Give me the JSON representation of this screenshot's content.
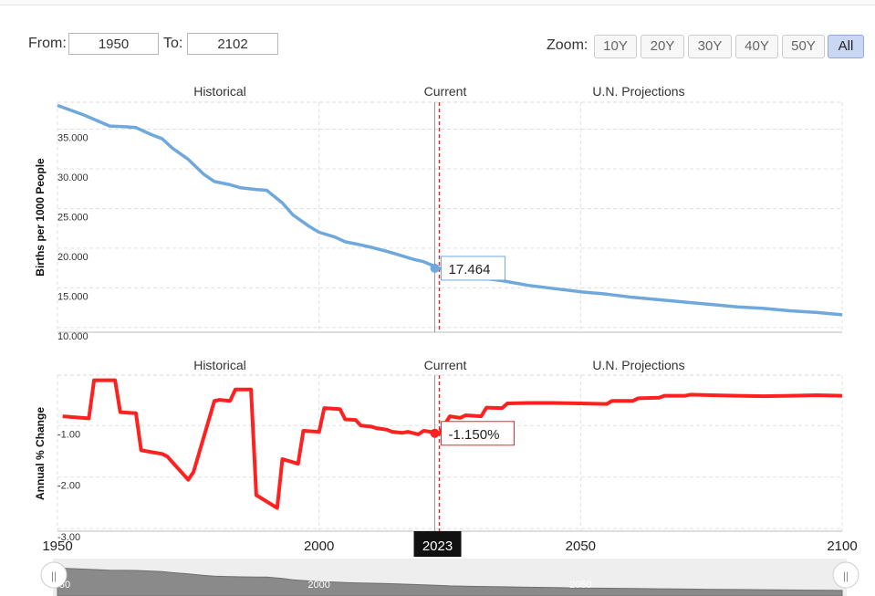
{
  "controls": {
    "from_label": "From:",
    "from_value": "1950",
    "to_label": "To:",
    "to_value": "2102",
    "zoom_label": "Zoom:",
    "zoom_buttons": [
      "10Y",
      "20Y",
      "30Y",
      "40Y",
      "50Y",
      "All"
    ],
    "zoom_selected": "All"
  },
  "colors": {
    "birth_rate_line": "#6fa8dc",
    "change_line": "#ff2020",
    "current_marker": "#cc3333"
  },
  "chart_data": [
    {
      "type": "line",
      "ylabel": "Births per 1000 People",
      "x_range": [
        1950,
        2100
      ],
      "ylim": [
        9.4,
        38.4
      ],
      "y_ticks": [
        10,
        15,
        20,
        25,
        30,
        35
      ],
      "y_tick_labels": [
        "10.000",
        "15.000",
        "20.000",
        "25.000",
        "30.000",
        "35.000"
      ],
      "section_labels": [
        "Historical",
        "Current",
        "U.N. Projections"
      ],
      "current": {
        "x": 2023,
        "y": 17.464,
        "label": "17.464"
      },
      "grid": true,
      "x": [
        1950,
        1955,
        1960,
        1963,
        1965,
        1968,
        1970,
        1972,
        1975,
        1978,
        1980,
        1983,
        1985,
        1988,
        1990,
        1993,
        1995,
        1998,
        2000,
        2003,
        2005,
        2008,
        2010,
        2013,
        2015,
        2018,
        2020,
        2023,
        2025,
        2030,
        2035,
        2040,
        2045,
        2050,
        2055,
        2060,
        2065,
        2070,
        2075,
        2080,
        2085,
        2090,
        2095,
        2100
      ],
      "y": [
        38.0,
        36.8,
        35.4,
        35.3,
        35.2,
        34.3,
        33.8,
        32.6,
        31.2,
        29.3,
        28.4,
        28.0,
        27.6,
        27.4,
        27.3,
        25.7,
        24.2,
        22.8,
        22.0,
        21.4,
        20.8,
        20.4,
        20.1,
        19.6,
        19.2,
        18.6,
        18.3,
        17.464,
        17.0,
        16.3,
        15.9,
        15.3,
        14.9,
        14.5,
        14.2,
        13.8,
        13.5,
        13.2,
        12.9,
        12.6,
        12.4,
        12.1,
        11.9,
        11.6
      ]
    },
    {
      "type": "line",
      "ylabel": "Annual % Change",
      "x_range": [
        1950,
        2100
      ],
      "ylim": [
        -3.05,
        -0.02
      ],
      "y_ticks": [
        -1,
        -2,
        -3
      ],
      "y_tick_labels": [
        "-1.00",
        "-2.00",
        "-3.00"
      ],
      "section_labels": [
        "Historical",
        "Current",
        "U.N. Projections"
      ],
      "current": {
        "x": 2023,
        "y": -1.15,
        "label": "-1.150%"
      },
      "grid": true,
      "x": [
        1951,
        1956,
        1957,
        1961,
        1962,
        1965,
        1966,
        1970,
        1971,
        1975,
        1976,
        1980,
        1981,
        1983,
        1984,
        1987,
        1988,
        1992,
        1993,
        1996,
        1997,
        2000,
        2001,
        2004,
        2005,
        2007,
        2008,
        2010,
        2011,
        2013,
        2014,
        2016,
        2017,
        2019,
        2020,
        2022,
        2023,
        2024,
        2025,
        2027,
        2028,
        2031,
        2032,
        2035,
        2036,
        2040,
        2045,
        2050,
        2055,
        2056,
        2060,
        2061,
        2065,
        2066,
        2070,
        2071,
        2075,
        2080,
        2085,
        2090,
        2095,
        2100
      ],
      "y": [
        -0.82,
        -0.86,
        -0.12,
        -0.12,
        -0.74,
        -0.76,
        -1.48,
        -1.55,
        -1.6,
        -2.05,
        -1.9,
        -0.52,
        -0.5,
        -0.52,
        -0.3,
        -0.3,
        -2.35,
        -2.6,
        -1.65,
        -1.74,
        -1.1,
        -1.12,
        -0.66,
        -0.68,
        -0.88,
        -0.89,
        -1.0,
        -1.02,
        -1.05,
        -1.08,
        -1.12,
        -1.14,
        -1.12,
        -1.17,
        -1.1,
        -1.13,
        -1.15,
        -0.98,
        -0.82,
        -0.85,
        -0.8,
        -0.82,
        -0.65,
        -0.66,
        -0.57,
        -0.56,
        -0.56,
        -0.57,
        -0.58,
        -0.52,
        -0.52,
        -0.47,
        -0.46,
        -0.42,
        -0.42,
        -0.4,
        -0.41,
        -0.42,
        -0.43,
        -0.42,
        -0.41,
        -0.42
      ]
    }
  ],
  "x_axis": {
    "tick_labels": [
      "1950",
      "2000",
      "2050",
      "2100"
    ],
    "tick_values": [
      1950,
      2000,
      2050,
      2100
    ],
    "current_label": "2023"
  },
  "navigator": {
    "labels": [
      "2000",
      "2050"
    ],
    "label_values": [
      2000,
      2050
    ],
    "left_handle": "||",
    "right_handle": "||",
    "partial_label": "50"
  }
}
